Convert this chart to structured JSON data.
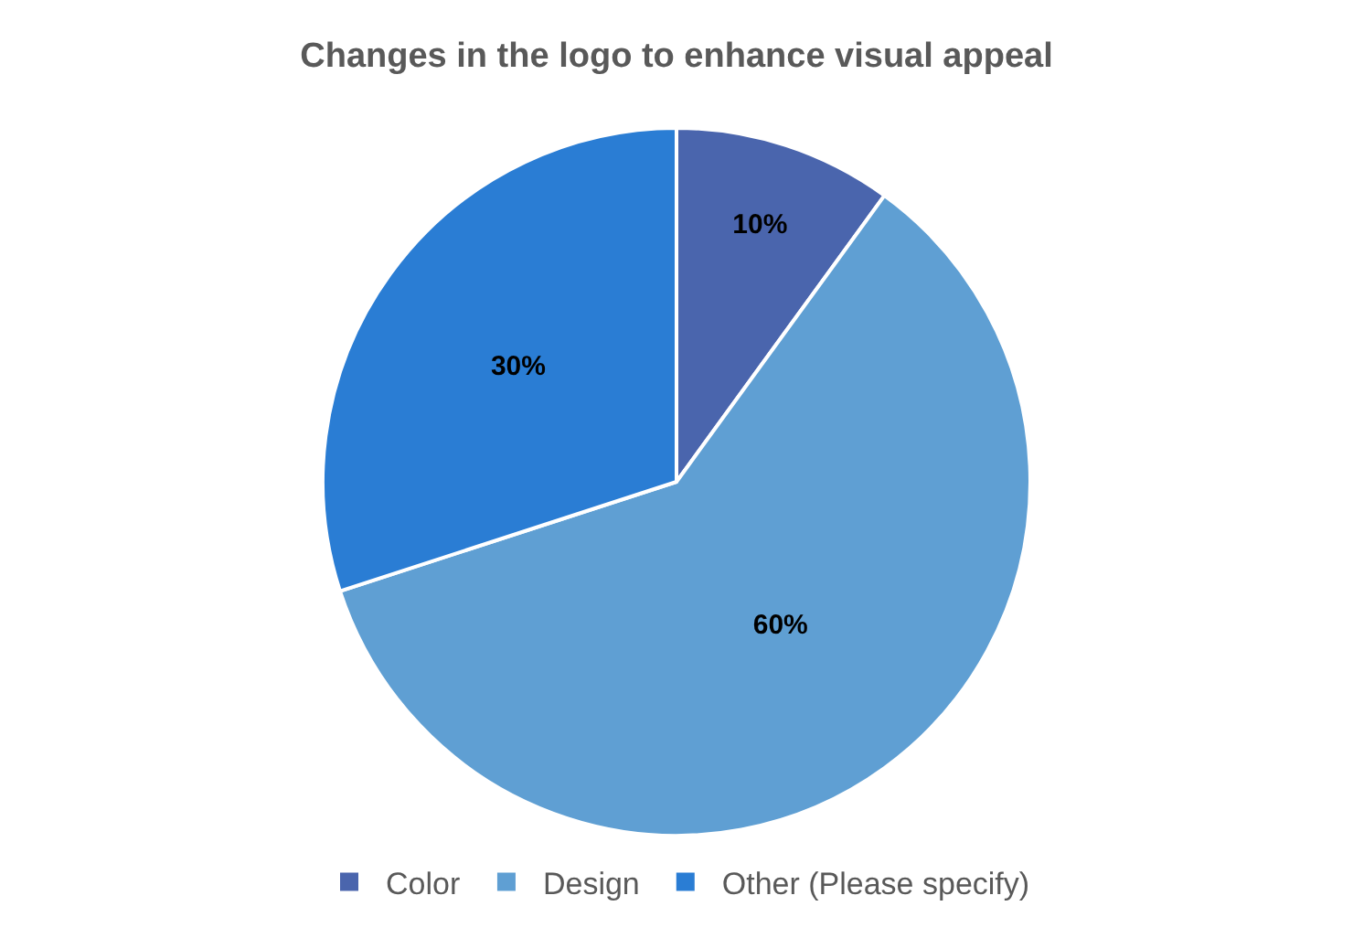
{
  "chart_data": {
    "type": "pie",
    "title": "Changes in the logo to enhance visual appeal",
    "categories": [
      "Color",
      "Design",
      "Other (Please specify)"
    ],
    "values": [
      10,
      60,
      30
    ],
    "value_labels": [
      "10%",
      "60%",
      "30%"
    ],
    "colors": [
      "#4a65ad",
      "#5f9fd3",
      "#2a7dd4"
    ],
    "legend": "bottom"
  }
}
